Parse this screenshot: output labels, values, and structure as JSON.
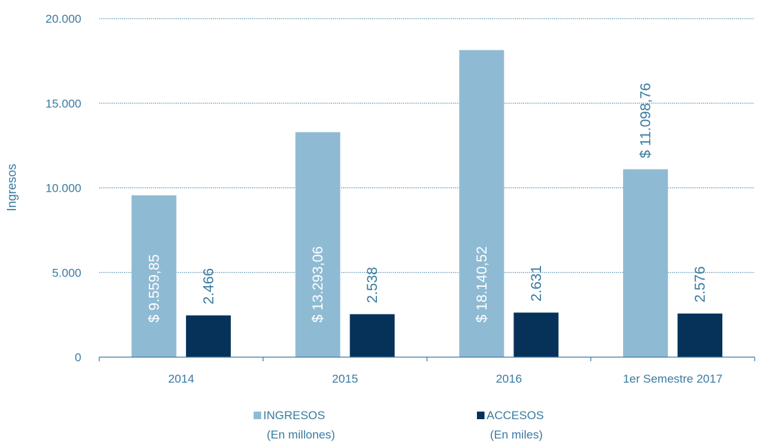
{
  "chart_data": {
    "type": "bar",
    "categories": [
      "2014",
      "2015",
      "2016",
      "1er Semestre 2017"
    ],
    "series": [
      {
        "name": "INGRESOS",
        "name_sub": "(En millones)",
        "values": [
          9559.85,
          13293.06,
          18140.52,
          11098.76
        ],
        "labels": [
          "$ 9.559,85",
          "$ 13.293,06",
          "$ 18.140,52",
          "$ 11.098,76"
        ],
        "color": "#8fbad3"
      },
      {
        "name": "ACCESOS",
        "name_sub": "(En miles)",
        "values": [
          2466,
          2538,
          2631,
          2576
        ],
        "labels": [
          "2.466",
          "2.538",
          "2.631",
          "2.576"
        ],
        "color": "#06325a"
      }
    ],
    "ylabel": "Ingresos",
    "ylim": [
      0,
      20000
    ],
    "yticks": [
      0,
      5000,
      10000,
      15000,
      20000
    ],
    "ytick_labels": [
      "0",
      "5.000",
      "10.000",
      "15.000",
      "20.000"
    ],
    "grid": true,
    "legend_position": "bottom",
    "text_color": "#3a7ba0",
    "grid_color": "#3a7ba0"
  }
}
